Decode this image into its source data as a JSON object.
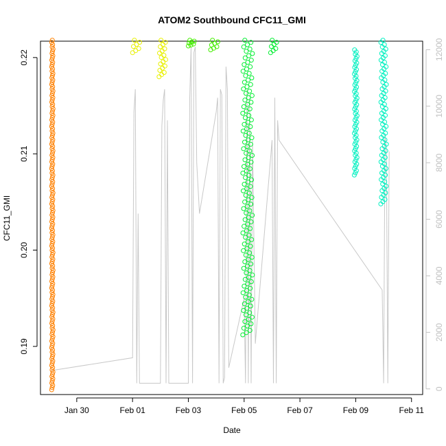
{
  "chart_data": {
    "type": "scatter",
    "title": "ATOM2 Southbound CFC11_GMI",
    "xlabel": "Date",
    "ylabel": "CFC11_GMI",
    "x_ticks": [
      "Jan 30",
      "Feb 01",
      "Feb 03",
      "Feb 05",
      "Feb 07",
      "Feb 09",
      "Feb 11"
    ],
    "y_ticks": [
      "0.19",
      "0.20",
      "0.21",
      "0.22"
    ],
    "y2_ticks": [
      "0",
      "2000",
      "4000",
      "6000",
      "8000",
      "10000",
      "12000"
    ],
    "xlim": [
      -1.3,
      12.4
    ],
    "ylim": [
      0.185,
      0.2217
    ],
    "y2lim": [
      -200,
      12300
    ],
    "series": [
      {
        "color": "#FF8000",
        "x_range": [
          -0.9,
          -0.85
        ],
        "y_range": [
          0.1855,
          0.2218
        ]
      },
      {
        "color": "#E8F000",
        "x_range": [
          2.0,
          2.3
        ],
        "y_range": [
          0.2205,
          0.2218
        ]
      },
      {
        "color": "#E8F000",
        "x_range": [
          2.95,
          3.2
        ],
        "y_range": [
          0.218,
          0.2218
        ]
      },
      {
        "color": "#44EE00",
        "x_range": [
          4.0,
          4.25
        ],
        "y_range": [
          0.2212,
          0.2218
        ]
      },
      {
        "color": "#44EE00",
        "x_range": [
          4.8,
          5.1
        ],
        "y_range": [
          0.2208,
          0.2218
        ]
      },
      {
        "color": "#00EE30",
        "x_range": [
          5.95,
          6.3
        ],
        "y_range": [
          0.1912,
          0.2218
        ]
      },
      {
        "color": "#00EE30",
        "x_range": [
          6.95,
          7.2
        ],
        "y_range": [
          0.2205,
          0.2218
        ]
      },
      {
        "color": "#00F0C0",
        "x_range": [
          9.95,
          10.05
        ],
        "y_range": [
          0.2078,
          0.2208
        ]
      },
      {
        "color": "#00F0C0",
        "x_range": [
          10.9,
          11.1
        ],
        "y_range": [
          0.2048,
          0.2218
        ]
      }
    ],
    "altitude_line": {
      "color": "#c8c8c8",
      "points": [
        [
          -0.9,
          650
        ],
        [
          2.0,
          1100
        ],
        [
          2.05,
          9800
        ],
        [
          2.1,
          10600
        ],
        [
          2.15,
          200
        ],
        [
          2.2,
          6200
        ],
        [
          2.25,
          200
        ],
        [
          3.0,
          200
        ],
        [
          3.05,
          9300
        ],
        [
          3.1,
          10200
        ],
        [
          3.15,
          10600
        ],
        [
          3.2,
          200
        ],
        [
          3.25,
          9500
        ],
        [
          3.3,
          200
        ],
        [
          4.0,
          200
        ],
        [
          4.05,
          10300
        ],
        [
          4.1,
          12100
        ],
        [
          4.15,
          200
        ],
        [
          4.2,
          11900
        ],
        [
          4.25,
          12100
        ],
        [
          4.3,
          8000
        ],
        [
          4.4,
          6200
        ],
        [
          5.0,
          9800
        ],
        [
          5.05,
          10300
        ],
        [
          5.1,
          200
        ],
        [
          5.15,
          10600
        ],
        [
          5.2,
          10400
        ],
        [
          5.25,
          200
        ],
        [
          5.3,
          400
        ],
        [
          5.35,
          11400
        ],
        [
          5.4,
          10600
        ],
        [
          5.45,
          750
        ],
        [
          6.0,
          3200
        ],
        [
          6.05,
          200
        ],
        [
          6.1,
          10600
        ],
        [
          6.15,
          200
        ],
        [
          6.2,
          10300
        ],
        [
          6.25,
          200
        ],
        [
          6.3,
          8800
        ],
        [
          6.4,
          1600
        ],
        [
          7.0,
          8800
        ],
        [
          7.05,
          200
        ],
        [
          7.1,
          10300
        ],
        [
          7.15,
          200
        ],
        [
          7.2,
          9500
        ],
        [
          7.25,
          8800
        ],
        [
          10.95,
          3500
        ],
        [
          11.0,
          200
        ],
        [
          11.05,
          9000
        ],
        [
          11.1,
          8500
        ],
        [
          11.15,
          200
        ],
        [
          11.2,
          8400
        ]
      ]
    }
  }
}
